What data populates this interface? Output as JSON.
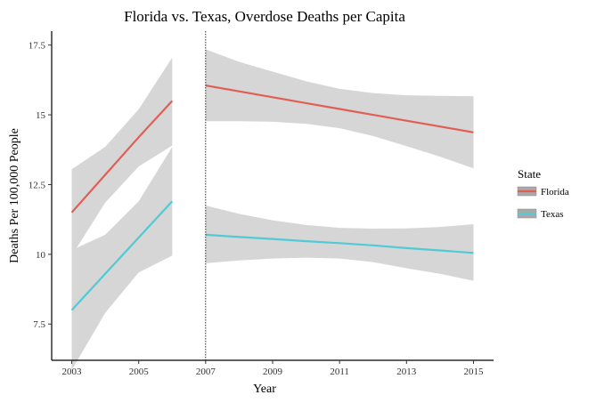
{
  "chart_data": {
    "type": "line",
    "title": "Florida vs. Texas, Overdose Deaths per Capita",
    "xlabel": "Year",
    "ylabel": "Deaths Per 100,000 People",
    "xlim": [
      2002.4,
      2015.6
    ],
    "ylim": [
      6.2,
      18.0
    ],
    "x_ticks": [
      2003,
      2005,
      2007,
      2009,
      2011,
      2013,
      2015
    ],
    "y_ticks": [
      7.5,
      10,
      12.5,
      15,
      17.5
    ],
    "y_tick_labels": [
      "7.5",
      "10",
      "12.5",
      "15",
      "17.5"
    ],
    "vline": 2007,
    "grid": false,
    "legend": {
      "title": "State",
      "position": "right"
    },
    "series": [
      {
        "name": "Florida",
        "color": "#e15e55",
        "segments": [
          {
            "x": [
              2003,
              2004,
              2005,
              2006
            ],
            "y": [
              11.5,
              12.85,
              14.2,
              15.5
            ],
            "upper": [
              13.05,
              13.85,
              15.2,
              17.05
            ],
            "lower": [
              9.95,
              11.85,
              13.15,
              13.9
            ]
          },
          {
            "x": [
              2007,
              2008,
              2009,
              2010,
              2011,
              2012,
              2013,
              2014,
              2015
            ],
            "y": [
              16.05,
              15.84,
              15.63,
              15.42,
              15.21,
              15.0,
              14.79,
              14.58,
              14.37
            ],
            "upper": [
              17.35,
              16.9,
              16.55,
              16.2,
              15.93,
              15.78,
              15.7,
              15.68,
              15.67
            ],
            "lower": [
              14.77,
              14.77,
              14.75,
              14.68,
              14.52,
              14.24,
              13.88,
              13.5,
              13.08
            ]
          }
        ]
      },
      {
        "name": "Texas",
        "color": "#50cad4",
        "segments": [
          {
            "x": [
              2003,
              2004,
              2005,
              2006
            ],
            "y": [
              8.0,
              9.3,
              10.6,
              11.9
            ],
            "upper": [
              10.15,
              10.7,
              11.9,
              13.85
            ],
            "lower": [
              5.85,
              7.9,
              9.35,
              9.95
            ]
          },
          {
            "x": [
              2007,
              2008,
              2009,
              2010,
              2011,
              2012,
              2013,
              2014,
              2015
            ],
            "y": [
              10.7,
              10.62,
              10.55,
              10.47,
              10.4,
              10.32,
              10.22,
              10.14,
              10.05
            ],
            "upper": [
              11.75,
              11.45,
              11.22,
              11.05,
              10.95,
              10.92,
              10.93,
              10.98,
              11.08
            ],
            "lower": [
              9.68,
              9.78,
              9.85,
              9.88,
              9.85,
              9.72,
              9.5,
              9.3,
              9.05
            ]
          }
        ]
      }
    ],
    "ribbon_color": "#d6d6d6"
  }
}
